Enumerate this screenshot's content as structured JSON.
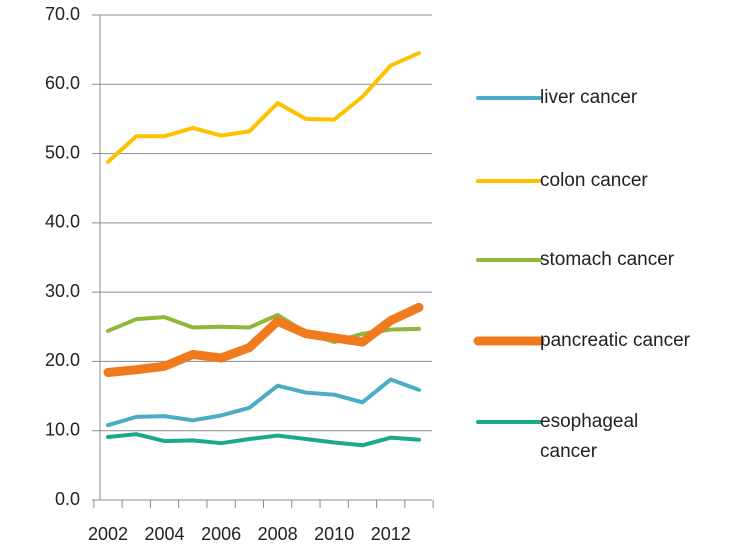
{
  "chart_data": {
    "type": "line",
    "categories": [
      "2002",
      null,
      "2004",
      null,
      "2006",
      null,
      "2008",
      null,
      "2010",
      null,
      "2012",
      null
    ],
    "ylim": [
      0,
      70
    ],
    "yticks": [
      {
        "value": 0,
        "label": "0.0"
      },
      {
        "value": 10,
        "label": "10.0"
      },
      {
        "value": 20,
        "label": "20.0"
      },
      {
        "value": 30,
        "label": "30.0"
      },
      {
        "value": 40,
        "label": "40.0"
      },
      {
        "value": 50,
        "label": "50.0"
      },
      {
        "value": 60,
        "label": "60.0"
      },
      {
        "value": 70,
        "label": "70.0"
      }
    ],
    "grid": true,
    "legend": "right",
    "series": [
      {
        "name": "liver cancer",
        "color": "#4bacc6",
        "line_width": 4,
        "values": [
          10.8,
          12.0,
          12.1,
          11.5,
          12.2,
          13.3,
          16.5,
          15.5,
          15.2,
          14.1,
          17.4,
          15.9
        ]
      },
      {
        "name": "colon cancer",
        "color": "#ffc000",
        "line_width": 4,
        "values": [
          48.8,
          52.5,
          52.5,
          53.7,
          52.6,
          53.2,
          57.3,
          55.0,
          54.9,
          58.2,
          62.7,
          64.5
        ]
      },
      {
        "name": "stomach cancer",
        "color": "#8fb83a",
        "line_width": 4,
        "values": [
          24.4,
          26.1,
          26.4,
          24.9,
          25.0,
          24.9,
          26.7,
          24.2,
          22.8,
          24.0,
          24.6,
          24.7
        ]
      },
      {
        "name": "pancreatic cancer",
        "color": "#f07a1e",
        "line_width": 9,
        "values": [
          18.4,
          18.8,
          19.3,
          21.0,
          20.5,
          22.0,
          25.8,
          24.0,
          23.4,
          22.8,
          25.9,
          27.8
        ]
      },
      {
        "name": "esophageal cancer",
        "color": "#1aa98a",
        "line_width": 4,
        "values": [
          9.1,
          9.5,
          8.5,
          8.6,
          8.2,
          8.8,
          9.3,
          8.8,
          8.3,
          7.9,
          9.0,
          8.7
        ]
      }
    ]
  }
}
